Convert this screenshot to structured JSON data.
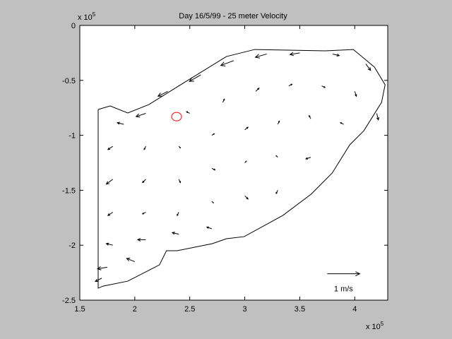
{
  "chart_data": {
    "type": "quiver",
    "title": "Day 16/5/99 - 25 meter Velocity",
    "x_multiplier": "x 10",
    "x_exponent": "5",
    "y_multiplier": "x 10",
    "y_exponent": "5",
    "xlim": [
      1.5,
      4.3
    ],
    "ylim": [
      -2.5,
      0
    ],
    "xticks": [
      1.5,
      2,
      2.5,
      3,
      3.5,
      4
    ],
    "yticks": [
      0,
      -0.5,
      -1,
      -1.5,
      -2,
      -2.5
    ],
    "color": "#000000",
    "x": [
      2.3,
      2.6,
      2.9,
      3.2,
      3.5,
      3.8,
      4.1,
      2.1,
      1.9,
      2.5,
      2.8,
      3.1,
      3.4,
      3.7,
      4.0,
      4.2,
      1.8,
      2.1,
      2.4,
      2.7,
      3.0,
      3.3,
      3.6,
      3.9,
      1.8,
      2.1,
      2.4,
      2.7,
      3.0,
      3.3,
      3.6,
      1.8,
      2.1,
      2.4,
      2.7,
      3.0,
      3.3,
      1.8,
      2.1,
      2.4,
      2.7,
      1.75,
      2.0,
      1.7
    ],
    "y": [
      -0.6,
      -0.45,
      -0.32,
      -0.26,
      -0.25,
      -0.26,
      -0.35,
      -0.8,
      -0.9,
      -0.8,
      -0.7,
      -0.6,
      -0.55,
      -0.55,
      -0.6,
      -0.8,
      -1.1,
      -1.1,
      -1.1,
      -1.0,
      -0.95,
      -0.9,
      -0.85,
      -0.9,
      -1.4,
      -1.4,
      -1.4,
      -1.3,
      -1.25,
      -1.2,
      -1.2,
      -1.7,
      -1.7,
      -1.7,
      -1.6,
      -1.55,
      -1.5,
      -2.0,
      -1.95,
      -1.9,
      -1.85,
      -2.2,
      -2.15,
      -2.3
    ],
    "u": [
      -0.3,
      -0.35,
      -0.4,
      -0.35,
      -0.3,
      0.2,
      0.15,
      -0.3,
      -0.2,
      -0.1,
      0.05,
      0.1,
      0.1,
      0.1,
      0.05,
      0.05,
      -0.15,
      -0.05,
      0.05,
      0.08,
      0.1,
      0.05,
      -0.05,
      -0.1,
      -0.2,
      -0.1,
      0.05,
      0.1,
      0.05,
      -0.05,
      -0.15,
      -0.15,
      -0.1,
      -0.05,
      0.05,
      0.1,
      -0.05,
      -0.2,
      -0.25,
      -0.2,
      -0.15,
      -0.3,
      -0.25,
      -0.2
    ],
    "v": [
      -0.15,
      -0.2,
      -0.15,
      -0.1,
      -0.05,
      -0.05,
      -0.2,
      -0.1,
      0.05,
      0.05,
      0.1,
      0.1,
      0.05,
      -0.05,
      -0.15,
      -0.2,
      -0.1,
      -0.1,
      -0.05,
      0.05,
      0.08,
      0.1,
      0.1,
      0.05,
      -0.15,
      -0.1,
      -0.1,
      -0.05,
      0.05,
      0.05,
      -0.05,
      -0.1,
      -0.05,
      -0.1,
      -0.05,
      -0.1,
      -0.1,
      0.05,
      0,
      0.05,
      0.05,
      -0.05,
      0.1,
      -0.1
    ],
    "boundary": {
      "x": [
        1.667,
        1.776,
        1.936,
        2.128,
        2.449,
        2.833,
        3.09,
        3.731,
        3.987,
        4.179,
        4.276,
        4.244,
        4.083,
        3.955,
        3.795,
        3.603,
        3.346,
        2.994,
        2.833,
        2.705,
        2.385,
        2.288,
        2.224,
        1.936,
        1.712,
        1.667,
        1.667
      ],
      "y": [
        -0.765,
        -0.733,
        -0.797,
        -0.72,
        -0.52,
        -0.283,
        -0.219,
        -0.231,
        -0.219,
        -0.379,
        -0.54,
        -0.7,
        -0.958,
        -1.086,
        -1.343,
        -1.536,
        -1.729,
        -1.922,
        -1.941,
        -1.986,
        -2.05,
        -2.05,
        -2.179,
        -2.327,
        -2.372,
        -2.391,
        -0.765
      ]
    },
    "marker": {
      "x": 2.38,
      "y": -0.83,
      "color": "#ff0000"
    },
    "key": {
      "x": 3.75,
      "y": -2.26,
      "value": 1,
      "label": "1 m/s"
    }
  }
}
